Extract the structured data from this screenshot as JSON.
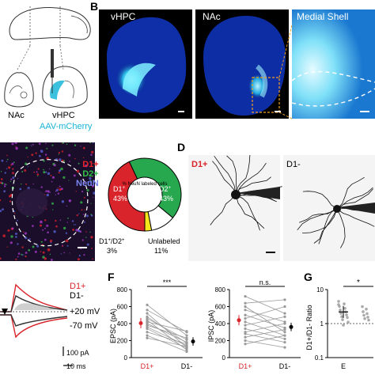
{
  "panel_a": {
    "label_nac": "NAc",
    "label_vhpc": "vHPC",
    "label_virus": "AAV-mCherry",
    "virus_color": "#19b5d8"
  },
  "panel_b": {
    "letter": "B",
    "image_titles": [
      "vHPC",
      "NAc",
      "Medial Shell"
    ]
  },
  "panel_c": {
    "legend": [
      {
        "text": "D1+",
        "color": "#e8232a"
      },
      {
        "text": "D2+",
        "color": "#35c24a"
      },
      {
        "text": "NeuN",
        "color": "#5a67e0"
      }
    ],
    "donut_center": "% NeuN labeled cells",
    "slice_labels": [
      {
        "name": "D1",
        "sup": "+",
        "value": "43%"
      },
      {
        "name": "D2",
        "sup": "+",
        "value": "43%"
      }
    ],
    "outside_labels": {
      "coloc_name": "D1",
      "coloc_sup1": "+",
      "coloc_mid": "/D2",
      "coloc_sup2": "+",
      "coloc_value": "3%",
      "unlabeled_name": "Unlabeled",
      "unlabeled_value": "11%"
    },
    "colors": {
      "d1": "#d8242a",
      "d2": "#27a84f",
      "coloc": "#f5e61b",
      "unlabeled": "#ffffff"
    }
  },
  "panel_d": {
    "letter": "D",
    "label_d1": "D1+",
    "label_d2": "D1-"
  },
  "panel_e": {
    "legend_d1": "D1+",
    "legend_d2": "D1-",
    "voltage_pos": "+20 mV",
    "voltage_neg": "-70 mV",
    "scale_pa": "100 pA",
    "scale_ms": "10 ms"
  },
  "panel_f": {
    "letter": "F",
    "epsc": {
      "ylabel": "EPSC (pA)",
      "ticks": [
        "0",
        "200",
        "400",
        "600",
        "800"
      ],
      "sig": "***",
      "categories": [
        "D1+",
        "D1-"
      ]
    },
    "ipsc": {
      "ylabel": "IPSC (pA)",
      "ticks": [
        "0",
        "200",
        "400",
        "600",
        "800"
      ],
      "sig": "n.s.",
      "categories": [
        "D1+",
        "D1-"
      ]
    }
  },
  "panel_g": {
    "letter": "G",
    "ylabel": "D1+/D1- Ratio",
    "tick_labels": [
      "10",
      "1",
      "0.1"
    ],
    "xlabel": "E",
    "sig": "*"
  },
  "chart_data": [
    {
      "type": "scatter",
      "title": "",
      "ylabel": "EPSC (pA)",
      "categories": [
        "D1+",
        "D1-"
      ],
      "ylim": [
        0,
        800
      ],
      "pairs": [
        [
          620,
          260
        ],
        [
          560,
          300
        ],
        [
          520,
          120
        ],
        [
          480,
          170
        ],
        [
          460,
          210
        ],
        [
          440,
          90
        ],
        [
          420,
          310
        ],
        [
          400,
          180
        ],
        [
          380,
          230
        ],
        [
          360,
          140
        ],
        [
          340,
          110
        ],
        [
          300,
          160
        ],
        [
          260,
          70
        ],
        [
          230,
          130
        ]
      ],
      "means": [
        405,
        190
      ],
      "sig": "***"
    },
    {
      "type": "scatter",
      "title": "",
      "ylabel": "IPSC (pA)",
      "categories": [
        "D1+",
        "D1-"
      ],
      "ylim": [
        0,
        800
      ],
      "pairs": [
        [
          720,
          520
        ],
        [
          640,
          680
        ],
        [
          600,
          300
        ],
        [
          560,
          420
        ],
        [
          500,
          350
        ],
        [
          460,
          600
        ],
        [
          420,
          260
        ],
        [
          380,
          480
        ],
        [
          340,
          220
        ],
        [
          300,
          400
        ],
        [
          280,
          180
        ],
        [
          240,
          330
        ],
        [
          200,
          120
        ],
        [
          160,
          260
        ]
      ],
      "means": [
        440,
        360
      ],
      "sig": "n.s."
    },
    {
      "type": "scatter",
      "title": "",
      "ylabel": "D1+/D1- Ratio",
      "scale": "log",
      "ylim": [
        0.1,
        10
      ],
      "categories": [
        "E"
      ],
      "values": [
        4.5,
        3.8,
        3.2,
        2.8,
        2.5,
        2.2,
        2.0,
        1.8,
        1.6,
        1.5,
        1.3,
        1.1,
        0.9,
        3.6
      ],
      "mean": 2.2,
      "reference_line": 1,
      "sig": "*"
    }
  ]
}
